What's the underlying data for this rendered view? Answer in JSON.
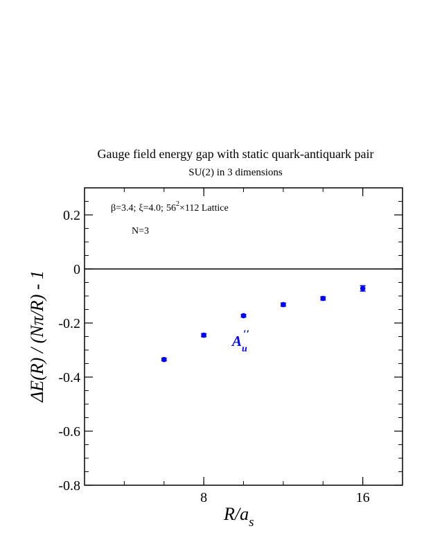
{
  "chart_data": {
    "type": "scatter",
    "title": "Gauge field energy gap with static quark-antiquark pair",
    "subtitle": "SU(2) in 3 dimensions",
    "xlabel": {
      "main": "R/a",
      "sub": "s"
    },
    "ylabel": "ΔE(R) / (Nπ/R) - 1",
    "xlim": [
      2,
      18
    ],
    "ylim": [
      -0.8,
      0.3
    ],
    "x_ticks": [
      8,
      16
    ],
    "x_tick_labels": [
      "8",
      "16"
    ],
    "y_ticks": [
      0.2,
      0,
      -0.2,
      -0.4,
      -0.6,
      -0.8
    ],
    "y_tick_labels": [
      "0.2",
      "0",
      "-0.2",
      "-0.4",
      "-0.6",
      "-0.8"
    ],
    "reference_line_y": 0,
    "grid": false,
    "legend": "none",
    "annotations": {
      "params": {
        "beta": "β=3.4;",
        "xi": "ξ=4.0;",
        "lattice_base": "56",
        "lattice_exp": "2",
        "lattice_rest": "×112 Lattice"
      },
      "n": "N=3",
      "series_label": {
        "main": "A",
        "sub": "u",
        "sup": "′′"
      }
    },
    "series": [
      {
        "color": "#0000ff",
        "x": [
          6,
          8,
          10,
          12,
          14,
          16
        ],
        "y": [
          -0.335,
          -0.245,
          -0.173,
          -0.132,
          -0.109,
          -0.072
        ],
        "yerr": [
          0.005,
          0.006,
          0.005,
          0.006,
          0.006,
          0.01
        ]
      }
    ]
  }
}
